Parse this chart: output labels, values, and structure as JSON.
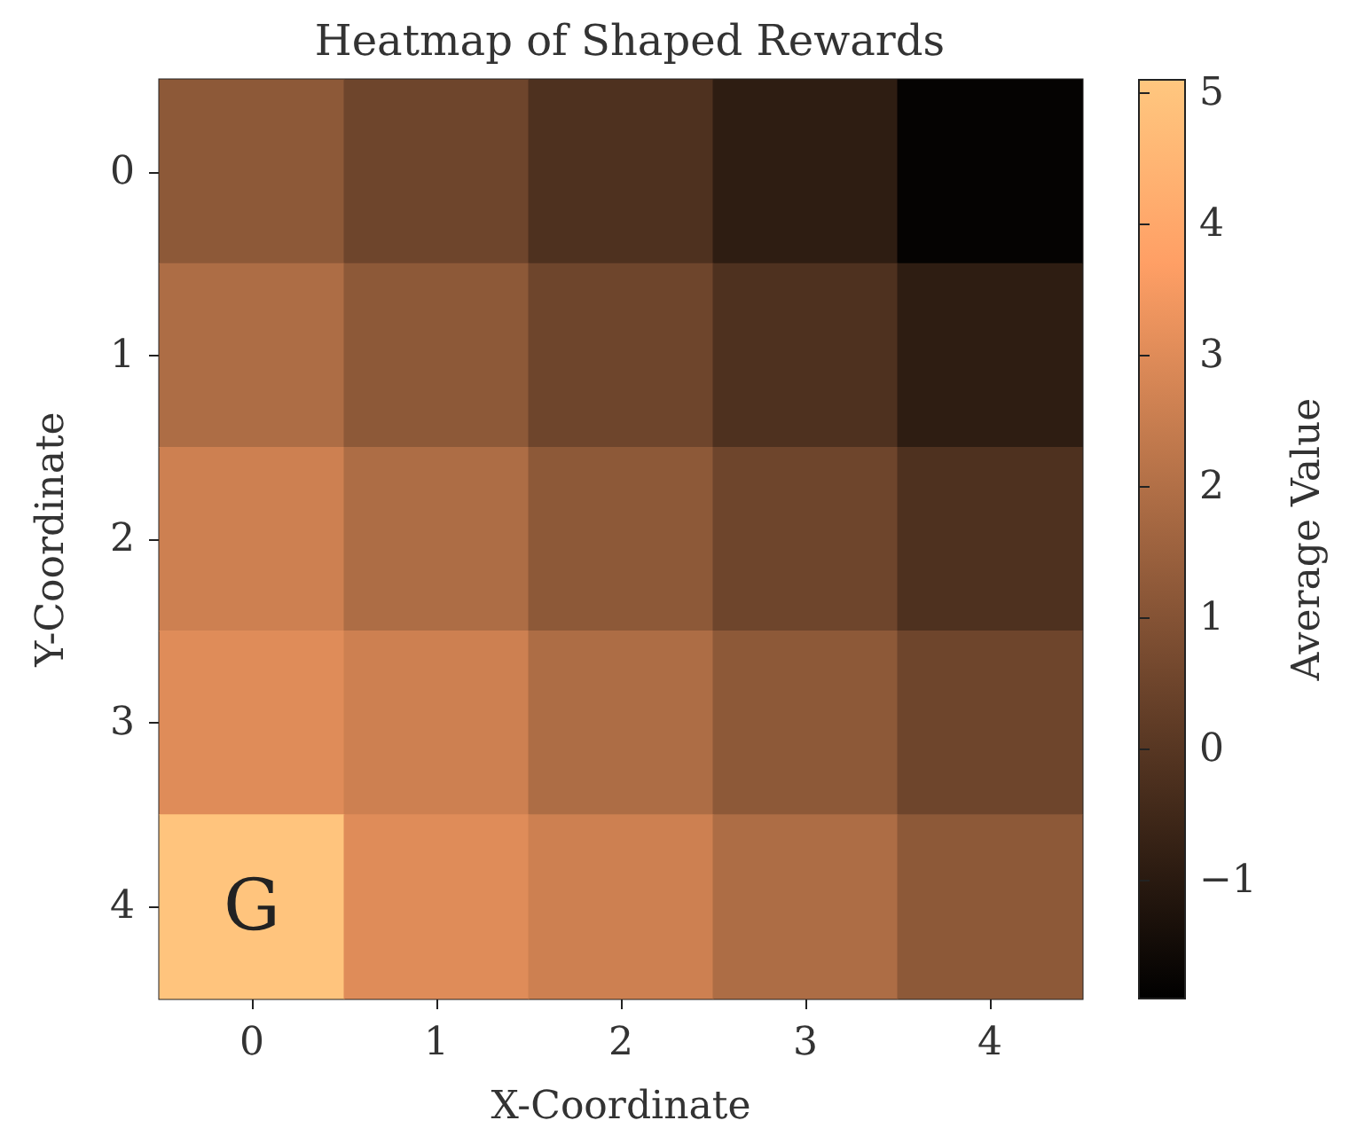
{
  "chart_data": {
    "type": "heatmap",
    "title": "Heatmap of Shaped Rewards",
    "xlabel": "X-Coordinate",
    "ylabel": "Y-Coordinate",
    "clabel": "Average Value",
    "categories": [
      "0",
      "1",
      "2",
      "3",
      "4"
    ],
    "y_categories": [
      "0",
      "1",
      "2",
      "3",
      "4"
    ],
    "cells": [
      [
        1.2,
        0.5,
        -0.2,
        -0.9,
        -1.8
      ],
      [
        1.9,
        1.2,
        0.5,
        -0.2,
        -0.9
      ],
      [
        2.6,
        1.9,
        1.2,
        0.5,
        -0.2
      ],
      [
        3.0,
        2.6,
        1.9,
        1.2,
        0.5
      ],
      [
        5.0,
        3.0,
        2.6,
        1.9,
        1.2
      ]
    ],
    "cell_labels": [
      [
        null,
        null,
        null,
        null,
        null
      ],
      [
        null,
        null,
        null,
        null,
        null
      ],
      [
        null,
        null,
        null,
        null,
        null
      ],
      [
        null,
        null,
        null,
        null,
        null
      ],
      [
        "G",
        null,
        null,
        null,
        null
      ]
    ],
    "clim": [
      -1.9,
      5.1
    ],
    "cticks": [
      {
        "value": -1,
        "label": "−1"
      },
      0,
      1,
      2,
      3,
      4,
      5
    ]
  }
}
